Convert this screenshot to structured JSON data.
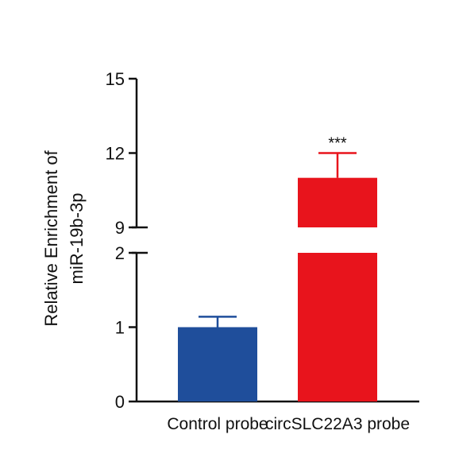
{
  "chart_data": {
    "type": "bar",
    "categories": [
      "Control probe",
      "circSLC22A3 probe"
    ],
    "values": [
      1.0,
      11.0
    ],
    "error_upper": [
      1.14,
      12.0
    ],
    "colors": [
      "#1f4e9b",
      "#e8141c"
    ],
    "ylabel_lines": [
      "Relative Enrichment of",
      "miR-19b-3p"
    ],
    "xlabel": "",
    "axis_break": {
      "lower_range": [
        0,
        2
      ],
      "upper_range": [
        9,
        15
      ]
    },
    "lower_ticks": [
      "0",
      "1",
      "2"
    ],
    "upper_ticks": [
      "9",
      "12",
      "15"
    ],
    "lower_tick_values": [
      0,
      1,
      2
    ],
    "upper_tick_values": [
      9,
      12,
      15
    ],
    "annotations": [
      {
        "category": "circSLC22A3 probe",
        "text": "***"
      }
    ]
  }
}
